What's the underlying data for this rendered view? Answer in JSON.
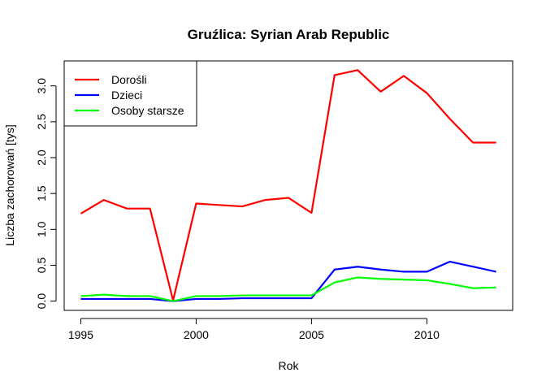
{
  "chart_data": {
    "type": "line",
    "title": "Gruźlica: Syrian Arab Republic",
    "xlabel": "Rok",
    "ylabel": "Liczba zachorowań [tys]",
    "x": [
      1995,
      1996,
      1997,
      1998,
      1999,
      2000,
      2001,
      2002,
      2003,
      2004,
      2005,
      2006,
      2007,
      2008,
      2009,
      2010,
      2011,
      2012,
      2013
    ],
    "xlim": [
      1994.28,
      2013.72
    ],
    "ylim": [
      -0.129,
      3.348
    ],
    "x_ticks": [
      1995,
      2000,
      2005,
      2010
    ],
    "y_ticks": [
      0.0,
      0.5,
      1.0,
      1.5,
      2.0,
      2.5,
      3.0
    ],
    "x_tick_labels": [
      "1995",
      "2000",
      "2005",
      "2010"
    ],
    "y_tick_labels": [
      "0.0",
      "0.5",
      "1.0",
      "1.5",
      "2.0",
      "2.5",
      "3.0"
    ],
    "grid": false,
    "legend_position": "top-left",
    "series": [
      {
        "name": "Dorośli",
        "color": "#ff0000",
        "values": [
          1.22,
          1.41,
          1.29,
          1.29,
          0.01,
          1.36,
          1.34,
          1.32,
          1.41,
          1.44,
          1.23,
          3.15,
          3.22,
          2.92,
          3.14,
          2.9,
          2.54,
          2.21,
          2.21
        ]
      },
      {
        "name": "Dzieci",
        "color": "#0000ff",
        "values": [
          0.03,
          0.03,
          0.03,
          0.03,
          0.0,
          0.03,
          0.03,
          0.04,
          0.04,
          0.04,
          0.04,
          0.44,
          0.48,
          0.44,
          0.41,
          0.41,
          0.55,
          0.48,
          0.41
        ]
      },
      {
        "name": "Osoby starsze",
        "color": "#00ff00",
        "values": [
          0.07,
          0.09,
          0.07,
          0.07,
          0.0,
          0.07,
          0.07,
          0.08,
          0.08,
          0.08,
          0.08,
          0.26,
          0.33,
          0.31,
          0.3,
          0.29,
          0.24,
          0.18,
          0.19
        ]
      }
    ]
  }
}
